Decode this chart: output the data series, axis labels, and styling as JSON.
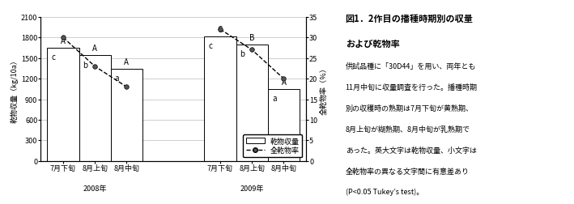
{
  "bar_values_2008": [
    1650,
    1540,
    1340
  ],
  "bar_values_2009": [
    1820,
    1700,
    1050
  ],
  "line_values_2008": [
    30,
    23,
    18
  ],
  "line_values_2009": [
    32,
    27,
    20
  ],
  "bar_labels_upper_2008": [
    "A",
    "A",
    "A"
  ],
  "bar_labels_lower_2008": [
    "c",
    "b",
    "a"
  ],
  "bar_labels_upper_2009": [
    "C",
    "B",
    "A"
  ],
  "bar_labels_lower_2009": [
    "c",
    "b",
    "a"
  ],
  "x_tick_labels": [
    "7月下旬",
    "8月上旬",
    "8月中旬"
  ],
  "year_labels": [
    "2008年",
    "2009年"
  ],
  "ylabel_left_lines": [
    "乾",
    "物",
    "収",
    "量",
    "（kg/10a）"
  ],
  "ylabel_right_lines": [
    "全",
    "乾",
    "物",
    "率",
    "（％）"
  ],
  "ylim_left": [
    0,
    2100
  ],
  "ylim_right": [
    0,
    35
  ],
  "yticks_left": [
    0,
    300,
    600,
    900,
    1200,
    1500,
    1800,
    2100
  ],
  "yticks_right": [
    0,
    5,
    10,
    15,
    20,
    25,
    30,
    35
  ],
  "legend_bar_label": "乾物収量",
  "legend_line_label": "全乾物率",
  "bar_color": "#ffffff",
  "bar_edgecolor": "#000000",
  "line_color": "#000000",
  "marker_color": "#555555",
  "background_color": "#ffffff",
  "grid_color": "#bbbbbb",
  "annot_color": "#000000",
  "title_line1": "図1．2作目の播種時期別の収量",
  "title_line2": "および乾物率",
  "body_text": "供試品種に「30D44」を用い、両年とも\n11月中旬に収量調査を行った。播種時期\n別の収穫時の熟期は7月下旬が黄熟期、\n8月上旬が糊熟期、8月中旬が乳熟期で\nあった。英大文字は乾物収量、小文字は\n全乾物率の異なる文字間に有意差あり\n(P<0.05 Tukey’s test)。",
  "font_size_ticks": 6.5,
  "font_size_labels": 6.5,
  "font_size_legend": 6.5,
  "font_size_annot": 7,
  "font_size_title": 8,
  "font_size_body": 6.5
}
